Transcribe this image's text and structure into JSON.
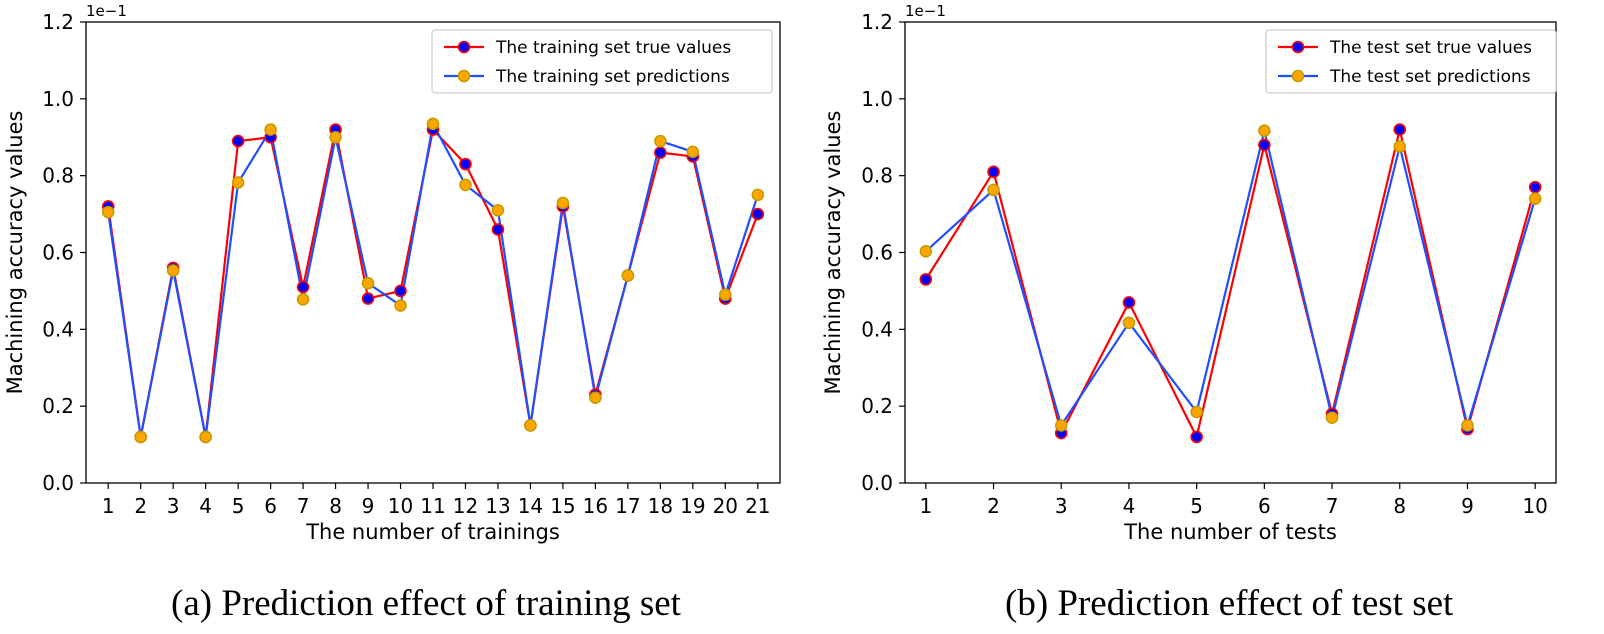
{
  "chart_data": [
    {
      "type": "line",
      "caption": "(a) Prediction effect of training set",
      "xlabel": "The number of trainings",
      "ylabel": "Machining accuracy values",
      "y_scale_label": "1e−1",
      "ylim": [
        0,
        1.2
      ],
      "yticks": [
        "0.0",
        "0.2",
        "0.4",
        "0.6",
        "0.8",
        "1.0",
        "1.2"
      ],
      "x": [
        "1",
        "2",
        "3",
        "4",
        "5",
        "6",
        "7",
        "8",
        "9",
        "10",
        "11",
        "12",
        "13",
        "14",
        "15",
        "16",
        "17",
        "18",
        "19",
        "20",
        "21"
      ],
      "legend_position": "top-right",
      "grid": false,
      "series": [
        {
          "name": "The training set true values",
          "line_color": "#ff0000",
          "marker_fill": "#0000ff",
          "marker_edge": "#ff0000",
          "values": [
            0.72,
            0.12,
            0.56,
            0.12,
            0.89,
            0.9,
            0.51,
            0.92,
            0.48,
            0.5,
            0.92,
            0.83,
            0.66,
            0.15,
            0.72,
            0.23,
            0.54,
            0.86,
            0.85,
            0.48,
            0.7
          ]
        },
        {
          "name": "The training set predictions",
          "line_color": "#1f4fff",
          "marker_fill": "#ffa500",
          "marker_edge": "#c0a000",
          "values": [
            0.705,
            0.12,
            0.553,
            0.12,
            0.782,
            0.92,
            0.478,
            0.9,
            0.52,
            0.462,
            0.935,
            0.776,
            0.71,
            0.15,
            0.729,
            0.222,
            0.54,
            0.89,
            0.862,
            0.49,
            0.75
          ]
        }
      ]
    },
    {
      "type": "line",
      "caption": "(b) Prediction effect of test set",
      "xlabel": "The number of tests",
      "ylabel": "Machining accuracy values",
      "y_scale_label": "1e−1",
      "ylim": [
        0,
        1.2
      ],
      "yticks": [
        "0.0",
        "0.2",
        "0.4",
        "0.6",
        "0.8",
        "1.0",
        "1.2"
      ],
      "x": [
        "1",
        "2",
        "3",
        "4",
        "5",
        "6",
        "7",
        "8",
        "9",
        "10"
      ],
      "legend_position": "top-right",
      "grid": false,
      "series": [
        {
          "name": "The test set true values",
          "line_color": "#ff0000",
          "marker_fill": "#0000ff",
          "marker_edge": "#ff0000",
          "values": [
            0.53,
            0.81,
            0.13,
            0.47,
            0.12,
            0.88,
            0.18,
            0.92,
            0.14,
            0.77
          ]
        },
        {
          "name": "The test set predictions",
          "line_color": "#1f4fff",
          "marker_fill": "#ffa500",
          "marker_edge": "#c0a000",
          "values": [
            0.603,
            0.763,
            0.15,
            0.417,
            0.185,
            0.917,
            0.17,
            0.876,
            0.15,
            0.74
          ]
        }
      ]
    }
  ]
}
